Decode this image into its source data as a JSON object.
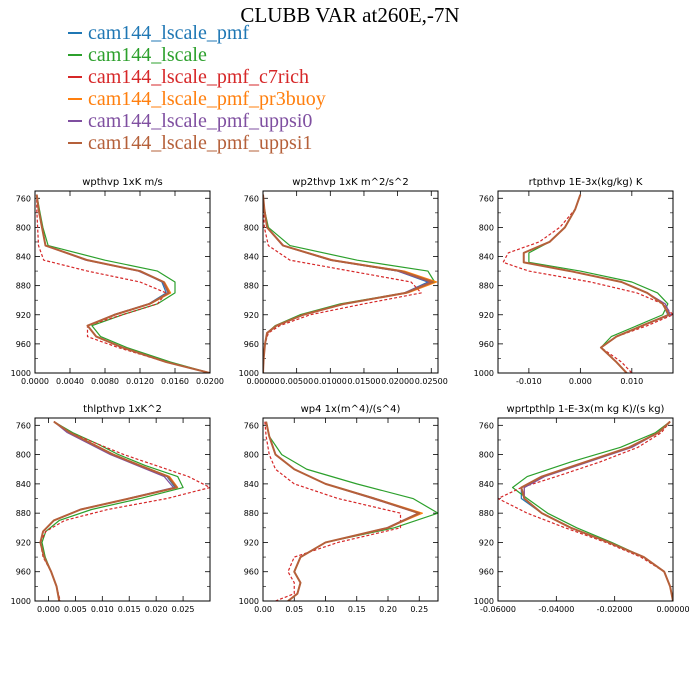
{
  "title": "CLUBB VAR at260E,-7N",
  "legend": [
    {
      "label": "cam144_lscale_pmf",
      "color": "#1f77b4"
    },
    {
      "label": "cam144_lscale",
      "color": "#2ca02c"
    },
    {
      "label": "cam144_lscale_pmf_c7rich",
      "color": "#d62728"
    },
    {
      "label": "cam144_lscale_pmf_pr3buoy",
      "color": "#ff7f0e"
    },
    {
      "label": "cam144_lscale_pmf_uppsi0",
      "color": "#7f4fa0"
    },
    {
      "label": "cam144_lscale_pmf_uppsi1",
      "color": "#b5603a"
    }
  ],
  "chart_data": [
    {
      "type": "line",
      "title": "wpthvp  1xK m/s",
      "xlim": [
        0,
        0.02
      ],
      "ylim": [
        1000,
        750
      ],
      "xticks": [
        "0.0000",
        "0.0040",
        "0.0080",
        "0.0120",
        "0.0160",
        "0.0200"
      ],
      "yticks": [
        "760",
        "800",
        "840",
        "880",
        "920",
        "960",
        "1000"
      ],
      "levels": [
        755,
        775,
        800,
        825,
        845,
        860,
        875,
        890,
        905,
        920,
        935,
        950,
        965,
        985,
        1000
      ],
      "series": [
        {
          "name": "cam144_lscale_pmf",
          "values": [
            0.0002,
            0.0004,
            0.0008,
            0.0012,
            0.006,
            0.012,
            0.0145,
            0.015,
            0.013,
            0.009,
            0.006,
            0.007,
            0.01,
            0.015,
            0.02
          ]
        },
        {
          "name": "cam144_lscale",
          "values": [
            0.0002,
            0.0005,
            0.0009,
            0.0015,
            0.008,
            0.014,
            0.016,
            0.016,
            0.014,
            0.01,
            0.0065,
            0.0075,
            0.0105,
            0.0155,
            0.02
          ]
        },
        {
          "name": "cam144_lscale_pmf_c7rich",
          "values": [
            0.0002,
            0.0002,
            0.0003,
            0.0004,
            0.001,
            0.006,
            0.012,
            0.015,
            0.014,
            0.01,
            0.006,
            0.006,
            0.0095,
            0.015,
            0.02
          ]
        },
        {
          "name": "cam144_lscale_pmf_pr3buoy",
          "values": [
            0.0002,
            0.0004,
            0.0008,
            0.0012,
            0.006,
            0.012,
            0.0148,
            0.0155,
            0.0132,
            0.0092,
            0.006,
            0.007,
            0.01,
            0.015,
            0.02
          ]
        },
        {
          "name": "cam144_lscale_pmf_uppsi0",
          "values": [
            0.0002,
            0.0004,
            0.0008,
            0.0012,
            0.0058,
            0.0118,
            0.0146,
            0.0152,
            0.013,
            0.009,
            0.006,
            0.007,
            0.01,
            0.015,
            0.02
          ]
        },
        {
          "name": "cam144_lscale_pmf_uppsi1",
          "values": [
            0.0002,
            0.0004,
            0.0008,
            0.0012,
            0.006,
            0.012,
            0.0147,
            0.0153,
            0.0131,
            0.0091,
            0.006,
            0.007,
            0.01,
            0.015,
            0.02
          ]
        }
      ]
    },
    {
      "type": "line",
      "title": "wp2thvp  1xK m^2/s^2",
      "xlim": [
        0,
        0.026
      ],
      "ylim": [
        1000,
        750
      ],
      "xticks": [
        "0.00000",
        "0.00500",
        "0.01000",
        "0.01500",
        "0.02000",
        "0.02500"
      ],
      "yticks": [
        "760",
        "800",
        "840",
        "880",
        "920",
        "960",
        "1000"
      ],
      "levels": [
        755,
        775,
        800,
        825,
        845,
        860,
        875,
        890,
        905,
        920,
        935,
        945,
        960,
        980,
        1000
      ],
      "series": [
        {
          "name": "cam144_lscale_pmf",
          "values": [
            0,
            0.0002,
            0.0006,
            0.003,
            0.01,
            0.02,
            0.0245,
            0.021,
            0.012,
            0.006,
            0.002,
            0.0006,
            0.0003,
            0.0001,
            0
          ]
        },
        {
          "name": "cam144_lscale",
          "values": [
            0,
            0.0002,
            0.0008,
            0.004,
            0.014,
            0.0245,
            0.0255,
            0.021,
            0.0115,
            0.0055,
            0.0018,
            0.0006,
            0.0003,
            0.0001,
            0
          ]
        },
        {
          "name": "cam144_lscale_pmf_c7rich",
          "values": [
            0,
            0.0001,
            0.0002,
            0.0008,
            0.004,
            0.013,
            0.022,
            0.0235,
            0.015,
            0.007,
            0.0025,
            0.0008,
            0.0003,
            0.0001,
            0
          ]
        },
        {
          "name": "cam144_lscale_pmf_pr3buoy",
          "values": [
            0,
            0.0002,
            0.0006,
            0.003,
            0.0105,
            0.021,
            0.0258,
            0.0215,
            0.0122,
            0.006,
            0.002,
            0.0006,
            0.0003,
            0.0001,
            0
          ]
        },
        {
          "name": "cam144_lscale_pmf_uppsi0",
          "values": [
            0,
            0.0002,
            0.0006,
            0.0029,
            0.01,
            0.02,
            0.0248,
            0.021,
            0.012,
            0.006,
            0.002,
            0.0006,
            0.0003,
            0.0001,
            0
          ]
        },
        {
          "name": "cam144_lscale_pmf_uppsi1",
          "values": [
            0,
            0.0002,
            0.0006,
            0.003,
            0.0102,
            0.0205,
            0.0252,
            0.0212,
            0.0121,
            0.006,
            0.002,
            0.0006,
            0.0003,
            0.0001,
            0
          ]
        }
      ]
    },
    {
      "type": "line",
      "title": "rtpthvp  1E-3x(kg/kg) K",
      "xlim": [
        -0.016,
        0.018
      ],
      "ylim": [
        1000,
        750
      ],
      "xticks": [
        "-0.010",
        "0.000",
        "0.010"
      ],
      "yticks": [
        "760",
        "800",
        "840",
        "880",
        "920",
        "960",
        "1000"
      ],
      "levels": [
        755,
        775,
        800,
        820,
        835,
        848,
        860,
        875,
        890,
        905,
        920,
        935,
        950,
        965,
        985,
        1000
      ],
      "series": [
        {
          "name": "cam144_lscale_pmf",
          "values": [
            0.0,
            -0.001,
            -0.003,
            -0.006,
            -0.011,
            -0.011,
            -0.002,
            0.008,
            0.013,
            0.016,
            0.017,
            0.012,
            0.007,
            0.004,
            0.007,
            0.009
          ]
        },
        {
          "name": "cam144_lscale",
          "values": [
            0.0,
            -0.001,
            -0.003,
            -0.006,
            -0.01,
            -0.01,
            0.0,
            0.01,
            0.015,
            0.017,
            0.016,
            0.011,
            0.006,
            0.004,
            0.007,
            0.009
          ]
        },
        {
          "name": "cam144_lscale_pmf_c7rich",
          "values": [
            0.0,
            -0.001,
            -0.004,
            -0.008,
            -0.014,
            -0.015,
            -0.01,
            0.002,
            0.011,
            0.016,
            0.018,
            0.013,
            0.007,
            0.004,
            0.008,
            0.01
          ]
        },
        {
          "name": "cam144_lscale_pmf_pr3buoy",
          "values": [
            0.0,
            -0.001,
            -0.003,
            -0.006,
            -0.011,
            -0.011,
            -0.002,
            0.008,
            0.013,
            0.016,
            0.0175,
            0.012,
            0.007,
            0.004,
            0.007,
            0.009
          ]
        },
        {
          "name": "cam144_lscale_pmf_uppsi0",
          "values": [
            0.0,
            -0.001,
            -0.003,
            -0.006,
            -0.011,
            -0.011,
            -0.002,
            0.008,
            0.013,
            0.0165,
            0.0175,
            0.012,
            0.007,
            0.004,
            0.007,
            0.009
          ]
        },
        {
          "name": "cam144_lscale_pmf_uppsi1",
          "values": [
            0.0,
            -0.001,
            -0.003,
            -0.006,
            -0.011,
            -0.011,
            -0.002,
            0.008,
            0.013,
            0.016,
            0.0172,
            0.012,
            0.007,
            0.004,
            0.007,
            0.009
          ]
        }
      ]
    },
    {
      "type": "line",
      "title": "thlpthvp  1xK^2",
      "xlim": [
        -0.0025,
        0.03
      ],
      "ylim": [
        1000,
        750
      ],
      "xticks": [
        "0.000",
        "0.005",
        "0.010",
        "0.015",
        "0.020",
        "0.025"
      ],
      "yticks": [
        "760",
        "800",
        "840",
        "880",
        "920",
        "960",
        "1000"
      ],
      "levels": [
        755,
        770,
        785,
        800,
        815,
        830,
        845,
        860,
        875,
        890,
        905,
        920,
        940,
        960,
        980,
        1000
      ],
      "series": [
        {
          "name": "cam144_lscale_pmf",
          "values": [
            0.001,
            0.004,
            0.008,
            0.012,
            0.017,
            0.022,
            0.0235,
            0.015,
            0.006,
            0.001,
            -0.001,
            -0.0015,
            -0.0008,
            0.0005,
            0.0015,
            0.002
          ]
        },
        {
          "name": "cam144_lscale",
          "values": [
            0.001,
            0.0045,
            0.009,
            0.013,
            0.018,
            0.024,
            0.025,
            0.017,
            0.008,
            0.002,
            -0.0005,
            -0.0012,
            -0.0006,
            0.0005,
            0.0015,
            0.002
          ]
        },
        {
          "name": "cam144_lscale_pmf_c7rich",
          "values": [
            0.001,
            0.004,
            0.009,
            0.014,
            0.02,
            0.026,
            0.03,
            0.022,
            0.011,
            0.003,
            -0.0005,
            -0.0015,
            -0.001,
            0.0005,
            0.0015,
            0.0022
          ]
        },
        {
          "name": "cam144_lscale_pmf_pr3buoy",
          "values": [
            0.001,
            0.004,
            0.0082,
            0.0122,
            0.0172,
            0.0225,
            0.024,
            0.0152,
            0.006,
            0.001,
            -0.001,
            -0.0015,
            -0.0008,
            0.0005,
            0.0015,
            0.002
          ]
        },
        {
          "name": "cam144_lscale_pmf_uppsi0",
          "values": [
            0.001,
            0.0035,
            0.0075,
            0.0115,
            0.0165,
            0.0215,
            0.0232,
            0.0148,
            0.0058,
            0.001,
            -0.001,
            -0.0015,
            -0.0008,
            0.0005,
            0.0015,
            0.002
          ]
        },
        {
          "name": "cam144_lscale_pmf_uppsi1",
          "values": [
            0.001,
            0.004,
            0.008,
            0.012,
            0.017,
            0.0222,
            0.0238,
            0.015,
            0.006,
            0.001,
            -0.001,
            -0.0015,
            -0.0008,
            0.0005,
            0.0015,
            0.002
          ]
        }
      ]
    },
    {
      "type": "line",
      "title": "wp4  1x(m^4)/(s^4)",
      "xlim": [
        0,
        0.28
      ],
      "ylim": [
        1000,
        750
      ],
      "xticks": [
        "0.00",
        "0.05",
        "0.10",
        "0.15",
        "0.20",
        "0.25"
      ],
      "yticks": [
        "760",
        "800",
        "840",
        "880",
        "920",
        "960",
        "1000"
      ],
      "levels": [
        755,
        775,
        800,
        820,
        840,
        860,
        880,
        900,
        920,
        940,
        960,
        975,
        990,
        1000
      ],
      "series": [
        {
          "name": "cam144_lscale_pmf",
          "values": [
            0.005,
            0.01,
            0.02,
            0.05,
            0.1,
            0.18,
            0.25,
            0.2,
            0.1,
            0.06,
            0.05,
            0.06,
            0.055,
            0.04
          ]
        },
        {
          "name": "cam144_lscale",
          "values": [
            0.005,
            0.01,
            0.03,
            0.07,
            0.15,
            0.24,
            0.28,
            0.21,
            0.1,
            0.06,
            0.05,
            0.06,
            0.055,
            0.04
          ]
        },
        {
          "name": "cam144_lscale_pmf_c7rich",
          "values": [
            0.003,
            0.005,
            0.01,
            0.02,
            0.05,
            0.12,
            0.22,
            0.22,
            0.12,
            0.05,
            0.04,
            0.05,
            0.05,
            0.02
          ]
        },
        {
          "name": "cam144_lscale_pmf_pr3buoy",
          "values": [
            0.005,
            0.01,
            0.02,
            0.05,
            0.1,
            0.18,
            0.255,
            0.2,
            0.1,
            0.06,
            0.05,
            0.06,
            0.055,
            0.04
          ]
        },
        {
          "name": "cam144_lscale_pmf_uppsi0",
          "values": [
            0.005,
            0.01,
            0.02,
            0.05,
            0.1,
            0.175,
            0.248,
            0.198,
            0.1,
            0.06,
            0.05,
            0.06,
            0.055,
            0.04
          ]
        },
        {
          "name": "cam144_lscale_pmf_uppsi1",
          "values": [
            0.005,
            0.01,
            0.02,
            0.05,
            0.1,
            0.178,
            0.25,
            0.2,
            0.1,
            0.06,
            0.05,
            0.06,
            0.055,
            0.04
          ]
        }
      ]
    },
    {
      "type": "line",
      "title": "wprtpthlp  1-E-3x(m kg K)/(s kg)",
      "xlim": [
        -0.06,
        0
      ],
      "ylim": [
        1000,
        750
      ],
      "xticks": [
        "-0.06000",
        "-0.04000",
        "-0.02000",
        "0.00000"
      ],
      "yticks": [
        "760",
        "800",
        "840",
        "880",
        "920",
        "960",
        "1000"
      ],
      "levels": [
        755,
        770,
        790,
        810,
        830,
        845,
        860,
        880,
        900,
        920,
        940,
        960,
        980,
        1000
      ],
      "series": [
        {
          "name": "cam144_lscale_pmf",
          "values": [
            -0.001,
            -0.005,
            -0.015,
            -0.03,
            -0.045,
            -0.052,
            -0.052,
            -0.045,
            -0.035,
            -0.022,
            -0.01,
            -0.003,
            -0.001,
            0
          ]
        },
        {
          "name": "cam144_lscale",
          "values": [
            -0.001,
            -0.006,
            -0.018,
            -0.035,
            -0.05,
            -0.055,
            -0.05,
            -0.043,
            -0.033,
            -0.021,
            -0.01,
            -0.003,
            -0.001,
            0
          ]
        },
        {
          "name": "cam144_lscale_pmf_c7rich",
          "values": [
            -0.001,
            -0.004,
            -0.012,
            -0.025,
            -0.04,
            -0.052,
            -0.06,
            -0.05,
            -0.037,
            -0.023,
            -0.011,
            -0.003,
            -0.001,
            0
          ]
        },
        {
          "name": "cam144_lscale_pmf_pr3buoy",
          "values": [
            -0.001,
            -0.005,
            -0.015,
            -0.03,
            -0.045,
            -0.051,
            -0.051,
            -0.045,
            -0.035,
            -0.022,
            -0.01,
            -0.003,
            -0.001,
            0
          ]
        },
        {
          "name": "cam144_lscale_pmf_uppsi0",
          "values": [
            -0.001,
            -0.005,
            -0.014,
            -0.029,
            -0.044,
            -0.051,
            -0.051,
            -0.045,
            -0.035,
            -0.022,
            -0.01,
            -0.003,
            -0.001,
            0
          ]
        },
        {
          "name": "cam144_lscale_pmf_uppsi1",
          "values": [
            -0.001,
            -0.005,
            -0.015,
            -0.03,
            -0.045,
            -0.052,
            -0.051,
            -0.045,
            -0.035,
            -0.022,
            -0.01,
            -0.003,
            -0.001,
            0
          ]
        }
      ]
    }
  ]
}
